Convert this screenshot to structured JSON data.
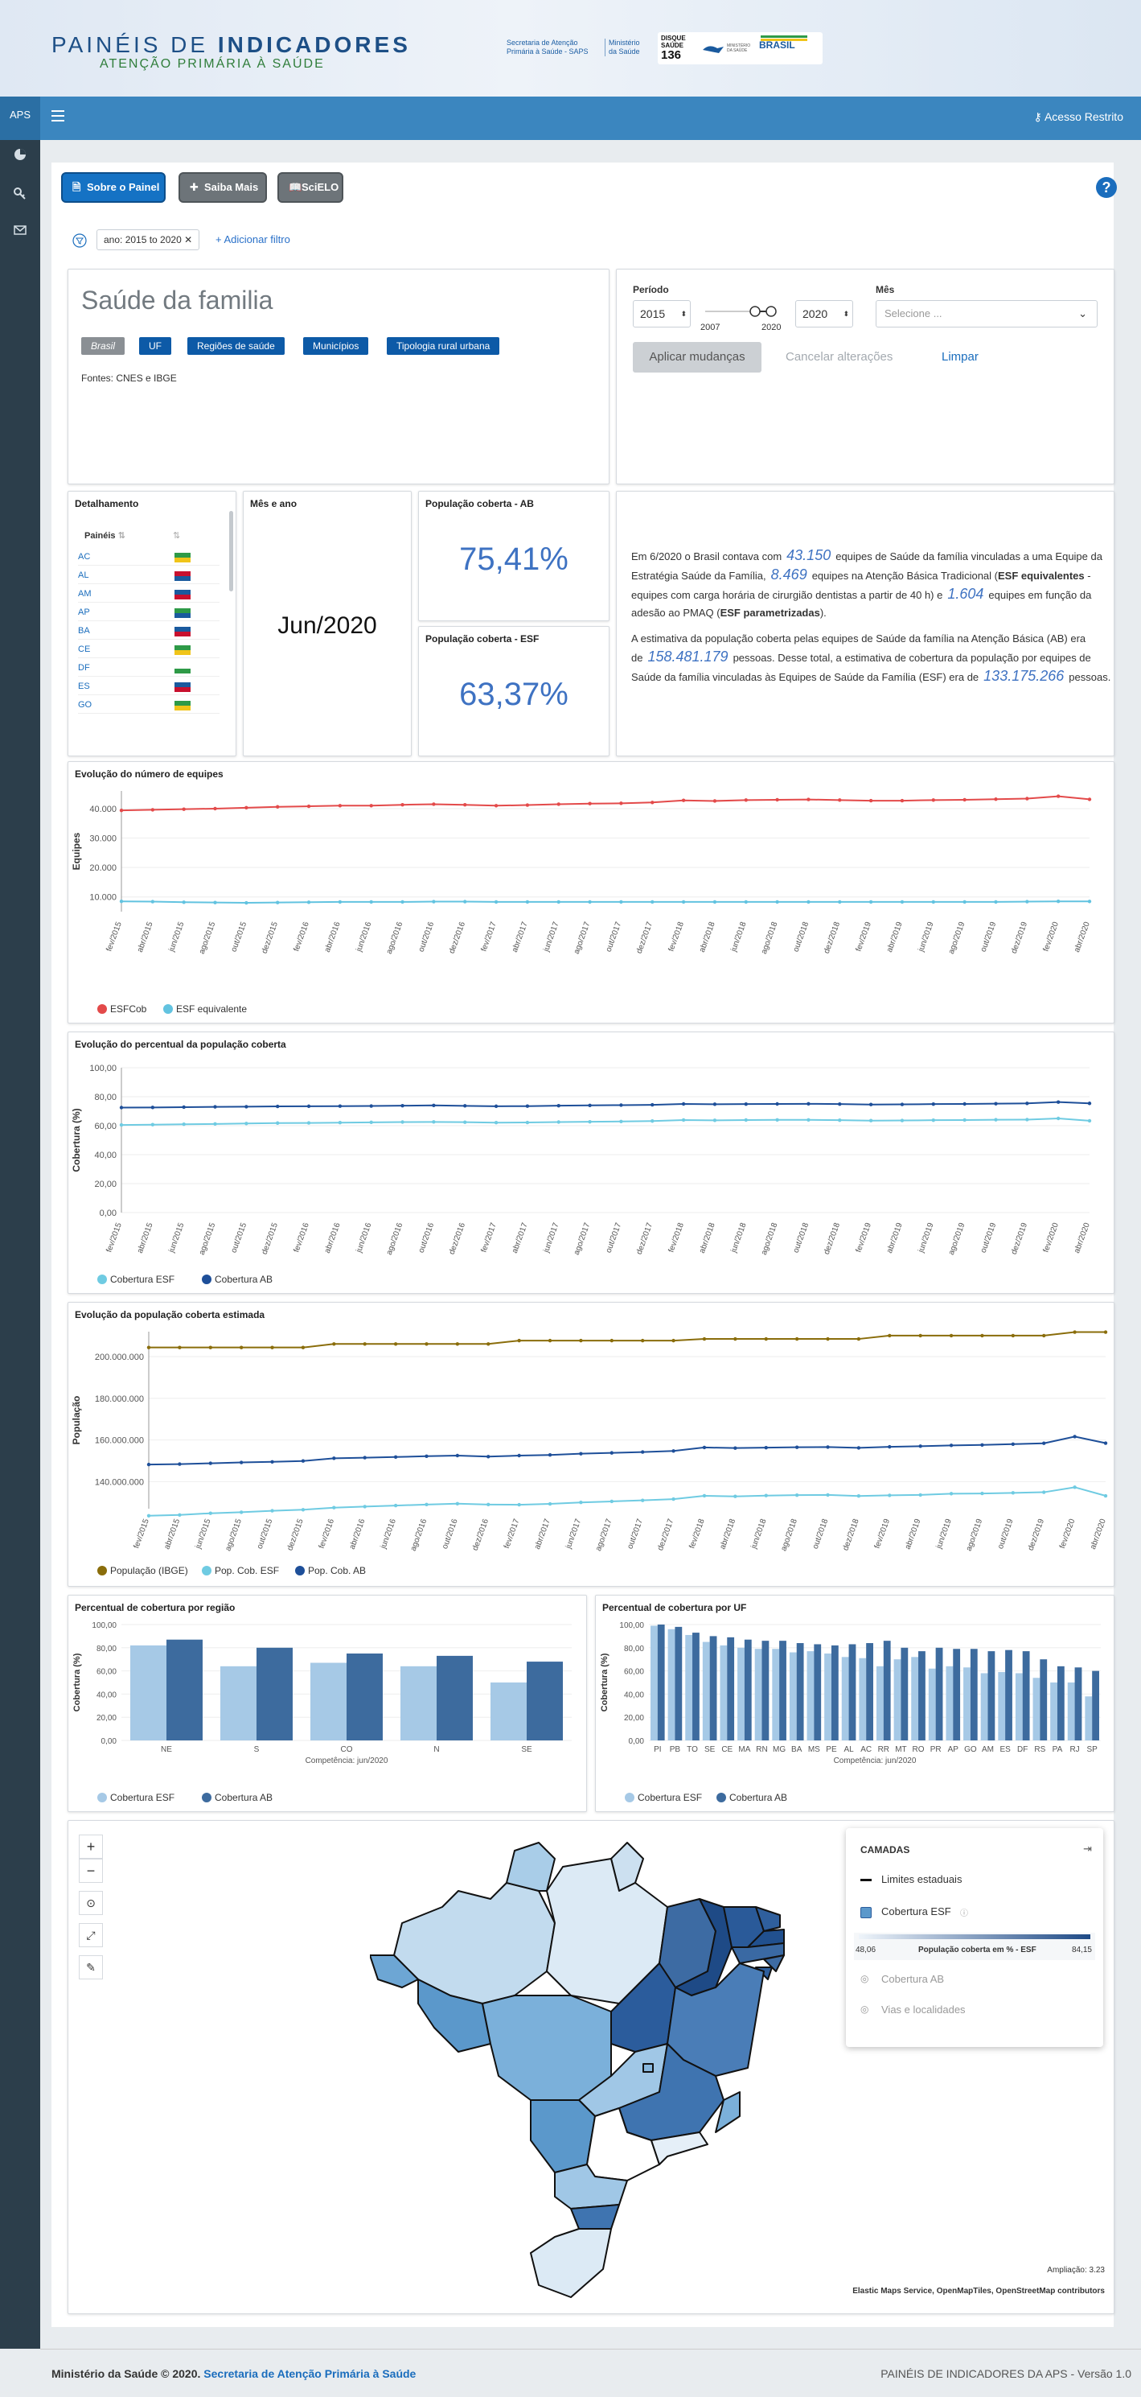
{
  "header": {
    "title_a": "PAINÉIS DE ",
    "title_b": "INDICADORES",
    "subtitle": "ATENÇÃO PRIMÁRIA À SAÚDE",
    "sec1": "Secretaria de Atenção",
    "sec2": "Primária à Saúde - SAPS",
    "min1": "Ministério",
    "min2": "da Saúde",
    "disque1": "DISQUE",
    "disque2": "SAÚDE",
    "disque3": "136",
    "brasil": "BRASIL",
    "ministerio_small": "MINISTÉRIO DA SAÚDE"
  },
  "topbar": {
    "aps": "APS",
    "acesso": "Acesso Restrito"
  },
  "toolbar": {
    "sobre": "Sobre o Painel",
    "saiba": "Saiba Mais",
    "scielo": "SciELO",
    "help": "?"
  },
  "filter": {
    "chip": "ano: 2015 to 2020",
    "add": "+ Adicionar filtro"
  },
  "title_panel": {
    "title": "Saúde da familia",
    "tabs": [
      "Brasil",
      "UF",
      "Regiões de saúde",
      "Municípios",
      "Tipologia rural urbana"
    ],
    "fontes": "Fontes: CNES e IBGE"
  },
  "controls": {
    "periodo_label": "Período",
    "from": "2015",
    "to": "2020",
    "tick_a": "2007",
    "tick_b": "2020",
    "mes_label": "Mês",
    "mes_placeholder": "Selecione ...",
    "aplicar": "Aplicar mudanças",
    "cancelar": "Cancelar alterações",
    "limpar": "Limpar"
  },
  "detalhamento": {
    "title": "Detalhamento",
    "col1": "Painéis",
    "col2": "",
    "rows": [
      "AC",
      "AL",
      "AM",
      "AP",
      "BA",
      "CE",
      "DF",
      "ES",
      "GO"
    ]
  },
  "mes_ano": {
    "title": "Mês e ano",
    "value": "Jun/2020"
  },
  "kpi_ab": {
    "title": "População coberta - AB",
    "value": "75,41%"
  },
  "kpi_esf": {
    "title": "População coberta - ESF",
    "value": "63,37%"
  },
  "text_panel": {
    "p1a": "Em 6/2020 o Brasil contava com",
    "v1": "43.150",
    "p1b": "equipes de Saúde da família vinculadas a",
    "p1c": "uma Equipe da Estratégia Saúde da Família,",
    "v2": "8.469",
    "p1d": "equipes na Atenção Básica",
    "p1e": "Tradicional (",
    "p1e_b": "ESF equivalentes",
    "p1f": " - equipes com carga horária de cirurgião dentistas a partir",
    "p1g": "de 40 h) e",
    "v3": "1.604",
    "p1h": "equipes em função da adesão ao PMAQ (",
    "p1h_b": "ESF parametrizadas",
    "p1i": ").",
    "p2a": "A estimativa da população coberta pelas equipes de Saúde da família na Atenção Básica",
    "p2b": "(AB) era de",
    "v4": "158.481.179",
    "p2c": "pessoas. Desse total, a estimativa de cobertura da",
    "p2d": "população por equipes de Saúde da família vinculadas às Equipes de Saúde da Família",
    "p2e": "(ESF) era de",
    "v5": "133.175.266",
    "p2f": "pessoas."
  },
  "chart1_title": "Evolução do número de equipes",
  "chart2_title": "Evolução do percentual da população coberta",
  "chart3_title": "Evolução da população coberta estimada",
  "chart4_title": "Percentual de cobertura por região",
  "chart5_title": "Percentual de cobertura por UF",
  "map": {
    "camadas": "CAMADAS",
    "limites": "Limites estaduais",
    "cobertura": "Cobertura ESF",
    "min": "48,06",
    "label": "População coberta em % - ESF",
    "max": "84,15",
    "ab": "Cobertura AB",
    "vias": "Vias e localidades",
    "ampliacao": "Ampliação: 3.23",
    "attribution": "Elastic Maps Service, OpenMapTiles, OpenStreetMap contributors"
  },
  "footer": {
    "left_a": "Ministério da Saúde © 2020. ",
    "left_b": "Secretaria de Atenção Primária à Saúde",
    "right": "PAINÉIS DE INDICADORES DA APS - Versão 1.0"
  },
  "colors": {
    "esfcob": "#e34a4a",
    "esf_equiv": "#62c3e0",
    "cob_esf": "#6fcbe2",
    "cob_ab": "#1e4f99",
    "ibge": "#8a6d0b",
    "bar_esf": "#a6c9e6",
    "bar_ab": "#3d6b9e"
  },
  "chart_data": [
    {
      "type": "line",
      "title": "Evolução do número de equipes",
      "ylabel": "Equipes",
      "ylim": [
        5000,
        46000
      ],
      "yticks": [
        "40.000",
        "30.000",
        "20.000",
        "10.000"
      ],
      "x": [
        "fev/2015",
        "abr/2015",
        "jun/2015",
        "ago/2015",
        "out/2015",
        "dez/2015",
        "fev/2016",
        "abr/2016",
        "jun/2016",
        "ago/2016",
        "out/2016",
        "dez/2016",
        "fev/2017",
        "abr/2017",
        "jun/2017",
        "ago/2017",
        "out/2017",
        "dez/2017",
        "fev/2018",
        "abr/2018",
        "jun/2018",
        "ago/2018",
        "out/2018",
        "dez/2018",
        "fev/2019",
        "abr/2019",
        "jun/2019",
        "ago/2019",
        "out/2019",
        "dez/2019",
        "fev/2020",
        "abr/2020"
      ],
      "series": [
        {
          "name": "ESFCob",
          "values": [
            39400,
            39600,
            39800,
            40000,
            40300,
            40600,
            40800,
            41000,
            41000,
            41300,
            41500,
            41300,
            41000,
            41200,
            41500,
            41700,
            41800,
            42100,
            42800,
            42600,
            42900,
            43000,
            43100,
            42900,
            42700,
            42700,
            42900,
            43000,
            43200,
            43400,
            44200,
            43150
          ]
        },
        {
          "name": "ESF equivalente",
          "values": [
            8500,
            8400,
            8200,
            8100,
            8000,
            8100,
            8200,
            8300,
            8300,
            8300,
            8400,
            8400,
            8300,
            8300,
            8300,
            8300,
            8300,
            8300,
            8300,
            8300,
            8300,
            8300,
            8300,
            8300,
            8300,
            8300,
            8300,
            8300,
            8300,
            8400,
            8500,
            8469
          ]
        }
      ]
    },
    {
      "type": "line",
      "title": "Evolução do percentual da população coberta",
      "ylabel": "Cobertura (%)",
      "ylim": [
        0,
        100
      ],
      "yticks": [
        "100,00",
        "80,00",
        "60,00",
        "40,00",
        "20,00",
        "0,00"
      ],
      "x": [
        "fev/2015",
        "abr/2015",
        "jun/2015",
        "ago/2015",
        "out/2015",
        "dez/2015",
        "fev/2016",
        "abr/2016",
        "jun/2016",
        "ago/2016",
        "out/2016",
        "dez/2016",
        "fev/2017",
        "abr/2017",
        "jun/2017",
        "ago/2017",
        "out/2017",
        "dez/2017",
        "fev/2018",
        "abr/2018",
        "jun/2018",
        "ago/2018",
        "out/2018",
        "dez/2018",
        "fev/2019",
        "abr/2019",
        "jun/2019",
        "ago/2019",
        "out/2019",
        "dez/2019",
        "fev/2020",
        "abr/2020"
      ],
      "series": [
        {
          "name": "Cobertura ESF",
          "values": [
            60.5,
            60.7,
            61,
            61.2,
            61.5,
            61.8,
            61.9,
            62.1,
            62.3,
            62.5,
            62.6,
            62.4,
            62.1,
            62.2,
            62.5,
            62.7,
            62.9,
            63.2,
            63.9,
            63.7,
            63.9,
            64,
            64,
            63.8,
            63.5,
            63.6,
            63.8,
            63.9,
            64.1,
            64.2,
            65,
            63.37
          ]
        },
        {
          "name": "Cobertura AB",
          "values": [
            72.5,
            72.6,
            72.8,
            73,
            73.1,
            73.3,
            73.4,
            73.5,
            73.6,
            73.8,
            74,
            73.7,
            73.4,
            73.5,
            73.8,
            74,
            74.2,
            74.4,
            75,
            74.8,
            74.9,
            75,
            75.1,
            74.9,
            74.6,
            74.7,
            74.9,
            75,
            75.2,
            75.4,
            76.3,
            75.41
          ]
        }
      ]
    },
    {
      "type": "line",
      "title": "Evolução da população coberta estimada",
      "ylabel": "População",
      "ylim": [
        127000000,
        212000000
      ],
      "yticks": [
        "200.000.000",
        "180.000.000",
        "160.000.000",
        "140.000.000"
      ],
      "x": [
        "fev/2015",
        "abr/2015",
        "jun/2015",
        "ago/2015",
        "out/2015",
        "dez/2015",
        "fev/2016",
        "abr/2016",
        "jun/2016",
        "ago/2016",
        "out/2016",
        "dez/2016",
        "fev/2017",
        "abr/2017",
        "jun/2017",
        "ago/2017",
        "out/2017",
        "dez/2017",
        "fev/2018",
        "abr/2018",
        "jun/2018",
        "ago/2018",
        "out/2018",
        "dez/2018",
        "fev/2019",
        "abr/2019",
        "jun/2019",
        "ago/2019",
        "out/2019",
        "dez/2019",
        "fev/2020",
        "abr/2020"
      ],
      "series": [
        {
          "name": "População (IBGE)",
          "values": [
            204400000,
            204400000,
            204400000,
            204400000,
            204400000,
            204400000,
            206100000,
            206100000,
            206100000,
            206100000,
            206100000,
            206100000,
            207700000,
            207700000,
            207700000,
            207700000,
            207700000,
            207700000,
            208500000,
            208500000,
            208500000,
            208500000,
            208500000,
            208500000,
            210100000,
            210100000,
            210100000,
            210100000,
            210100000,
            210100000,
            211800000,
            211800000
          ]
        },
        {
          "name": "Pop. Cob. ESF",
          "values": [
            123600000,
            124000000,
            124800000,
            125300000,
            126000000,
            126500000,
            127500000,
            128000000,
            128500000,
            129000000,
            129400000,
            129000000,
            128900000,
            129300000,
            130000000,
            130500000,
            131000000,
            131600000,
            133200000,
            132900000,
            133300000,
            133500000,
            133600000,
            133100000,
            133400000,
            133600000,
            134200000,
            134300000,
            134600000,
            134900000,
            137300000,
            133175266
          ]
        },
        {
          "name": "Pop. Cob. AB",
          "values": [
            148200000,
            148400000,
            148800000,
            149200000,
            149500000,
            149900000,
            151200000,
            151500000,
            151800000,
            152200000,
            152500000,
            152000000,
            152500000,
            152800000,
            153400000,
            153800000,
            154200000,
            154700000,
            156400000,
            156100000,
            156300000,
            156500000,
            156600000,
            156200000,
            156700000,
            157000000,
            157400000,
            157600000,
            158000000,
            158400000,
            161600000,
            158481179
          ]
        }
      ]
    },
    {
      "type": "bar",
      "title": "Percentual de cobertura por região",
      "ylabel": "Cobertura (%)",
      "xlabel": "Competência: jun/2020",
      "ylim": [
        0,
        100
      ],
      "yticks": [
        "100,00",
        "80,00",
        "60,00",
        "40,00",
        "20,00",
        "0,00"
      ],
      "categories": [
        "NE",
        "S",
        "CO",
        "N",
        "SE"
      ],
      "series": [
        {
          "name": "Cobertura ESF",
          "values": [
            82,
            64,
            67,
            64,
            50
          ]
        },
        {
          "name": "Cobertura AB",
          "values": [
            87,
            80,
            75,
            73,
            68
          ]
        }
      ]
    },
    {
      "type": "bar",
      "title": "Percentual de cobertura por UF",
      "ylabel": "Cobertura (%)",
      "xlabel": "Competência: jun/2020",
      "ylim": [
        0,
        100
      ],
      "yticks": [
        "100,00",
        "80,00",
        "60,00",
        "40,00",
        "20,00",
        "0,00"
      ],
      "categories": [
        "PI",
        "PB",
        "TO",
        "SE",
        "CE",
        "MA",
        "RN",
        "MG",
        "BA",
        "MS",
        "PE",
        "AL",
        "AC",
        "RR",
        "MT",
        "RO",
        "PR",
        "AP",
        "GO",
        "AM",
        "ES",
        "DF",
        "RS",
        "PA",
        "RJ",
        "SP"
      ],
      "series": [
        {
          "name": "Cobertura ESF",
          "values": [
            99,
            96,
            91,
            85,
            82,
            80,
            79,
            79,
            76,
            77,
            75,
            72,
            71,
            64,
            70,
            72,
            62,
            64,
            63,
            58,
            59,
            58,
            54,
            50,
            50,
            38
          ]
        },
        {
          "name": "Cobertura AB",
          "values": [
            100,
            98,
            93,
            90,
            89,
            87,
            86,
            86,
            84,
            83,
            82,
            83,
            84,
            86,
            80,
            77,
            80,
            79,
            79,
            77,
            78,
            77,
            70,
            64,
            63,
            60
          ]
        }
      ]
    }
  ]
}
